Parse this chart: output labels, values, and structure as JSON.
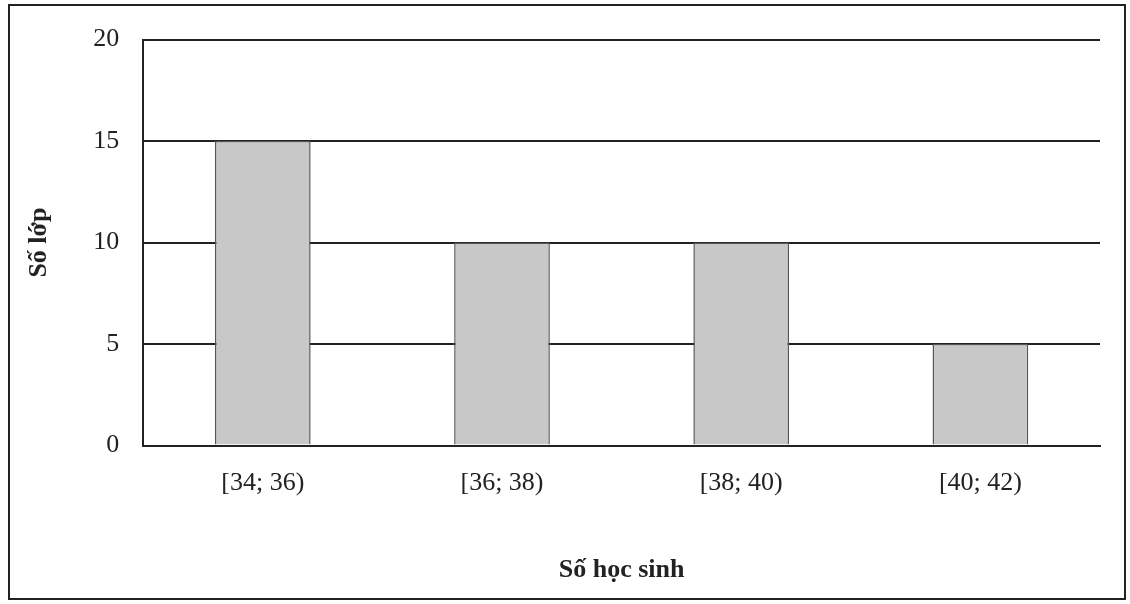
{
  "chart_data": {
    "type": "bar",
    "xlabel": "Số học sinh",
    "ylabel": "Số lớp",
    "categories": [
      "[34; 36)",
      "[36; 38)",
      "[38; 40)",
      "[40; 42)"
    ],
    "values": [
      15,
      10,
      10,
      5
    ],
    "color": "#c8c8c8",
    "ylim": [
      0,
      20
    ],
    "yticks": [
      0,
      5,
      10,
      15,
      20
    ],
    "grid": "y"
  }
}
